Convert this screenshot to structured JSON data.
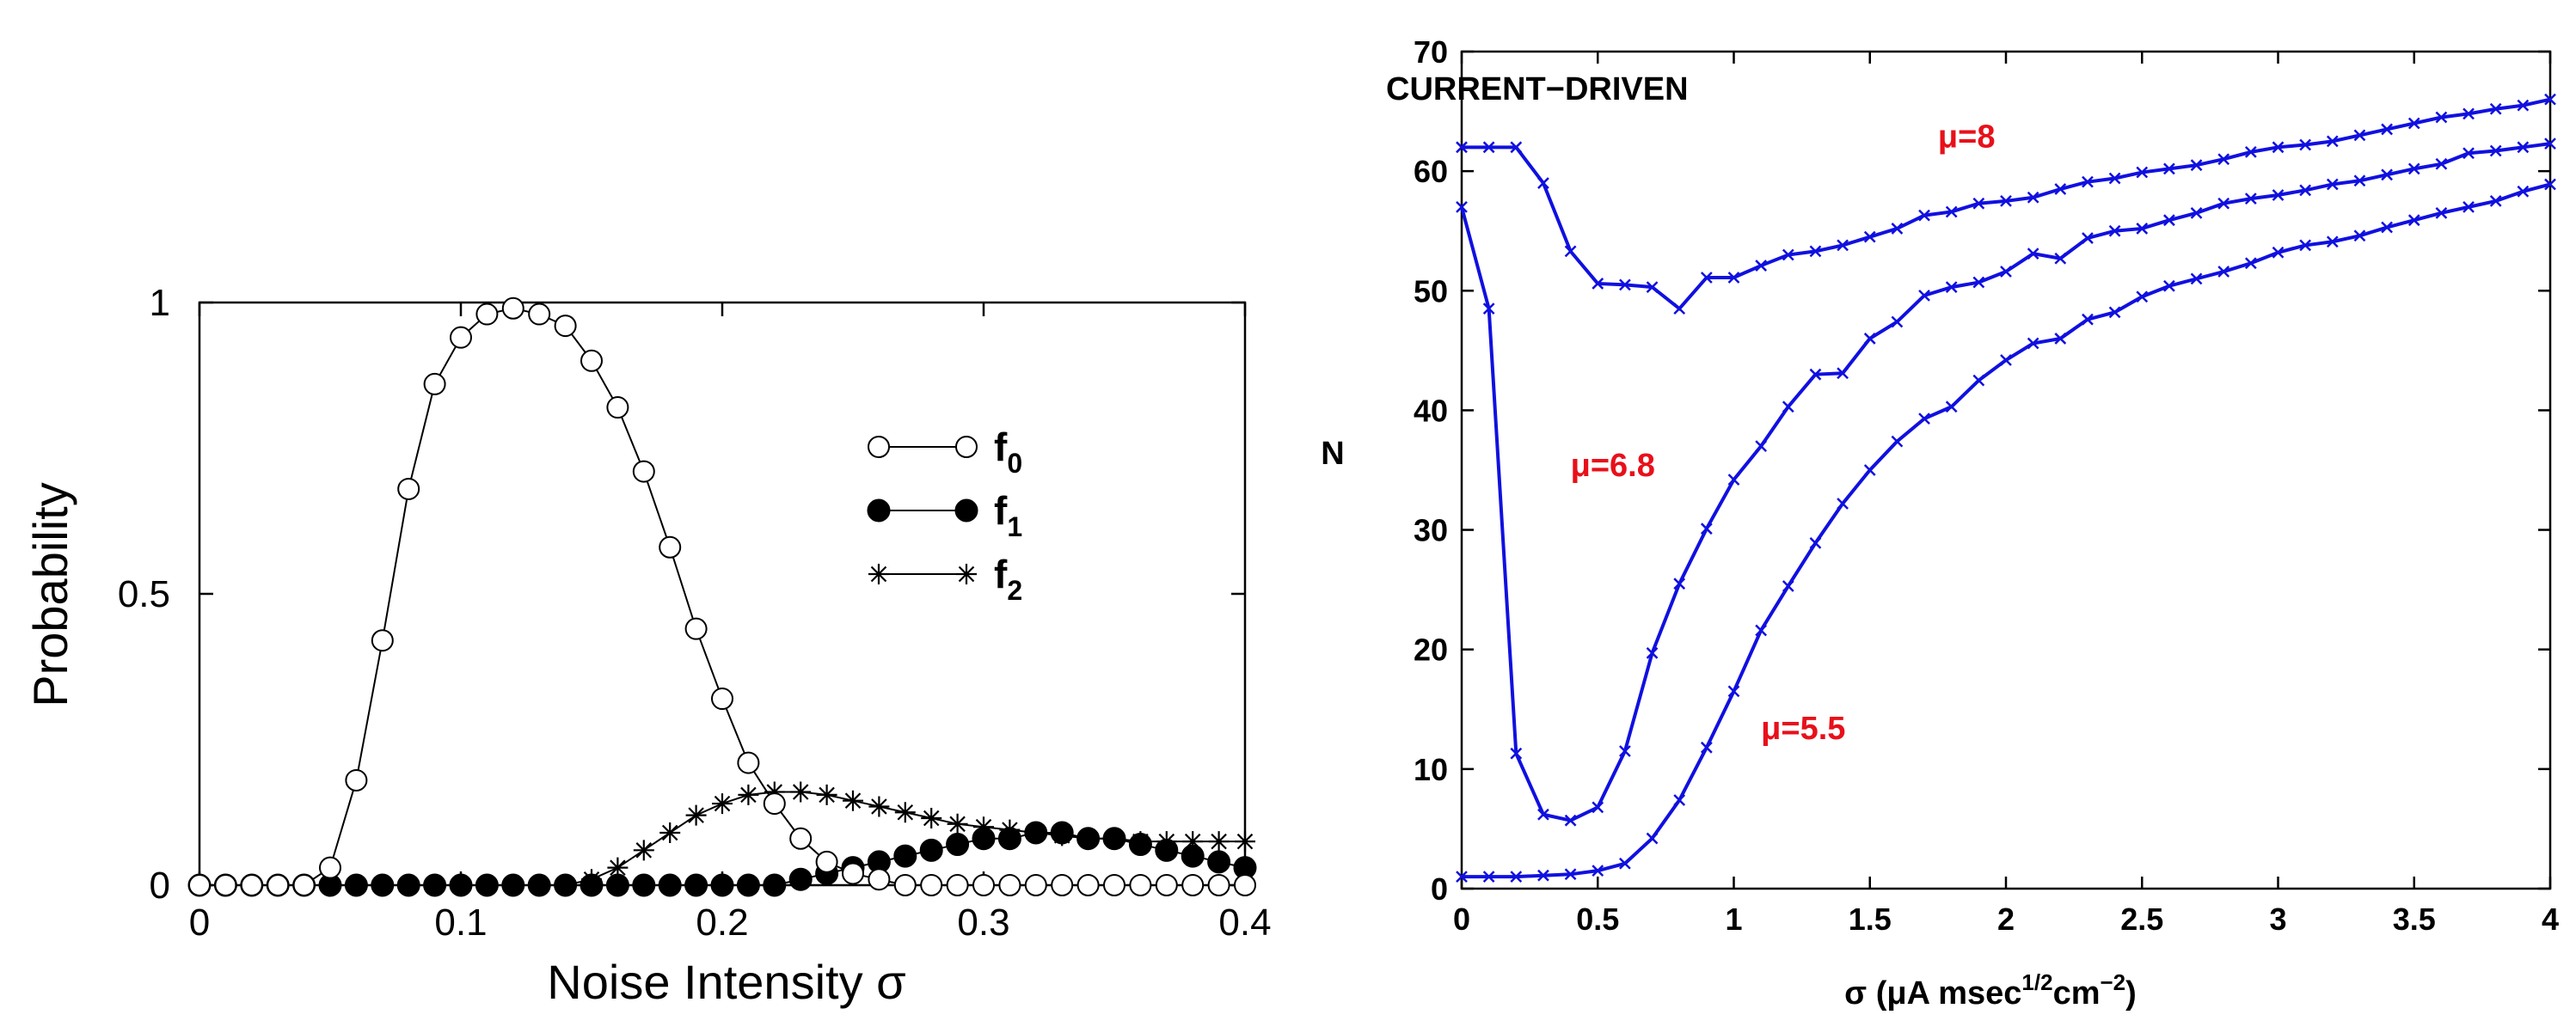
{
  "chart_data": [
    {
      "type": "line",
      "xlabel": "Noise  Intensity σ",
      "ylabel": "Probability",
      "xlim": [
        0,
        0.4
      ],
      "ylim": [
        0,
        1
      ],
      "x_ticks": [
        "0",
        "0.1",
        "0.2",
        "0.3",
        "0.4"
      ],
      "y_ticks": [
        "0",
        "0.5",
        "1"
      ],
      "x": [
        0.0,
        0.01,
        0.02,
        0.03,
        0.04,
        0.05,
        0.06,
        0.07,
        0.08,
        0.09,
        0.1,
        0.11,
        0.12,
        0.13,
        0.14,
        0.15,
        0.16,
        0.17,
        0.18,
        0.19,
        0.2,
        0.21,
        0.22,
        0.23,
        0.24,
        0.25,
        0.26,
        0.27,
        0.28,
        0.29,
        0.3,
        0.31,
        0.32,
        0.33,
        0.34,
        0.35,
        0.36,
        0.37,
        0.38,
        0.39,
        0.4
      ],
      "series": [
        {
          "name": "f",
          "subscript": "0",
          "marker": "open-circle",
          "values": [
            0,
            0,
            0,
            0,
            0,
            0.03,
            0.18,
            0.42,
            0.68,
            0.86,
            0.94,
            0.98,
            0.99,
            0.98,
            0.96,
            0.9,
            0.82,
            0.71,
            0.58,
            0.44,
            0.32,
            0.21,
            0.14,
            0.08,
            0.04,
            0.02,
            0.01,
            0,
            0,
            0,
            0,
            0,
            0,
            0,
            0,
            0,
            0,
            0,
            0,
            0,
            0
          ]
        },
        {
          "name": "f",
          "subscript": "1",
          "marker": "filled-circle",
          "values": [
            0,
            0,
            0,
            0,
            0,
            0,
            0,
            0,
            0,
            0,
            0,
            0,
            0,
            0,
            0,
            0,
            0,
            0,
            0,
            0,
            0,
            0,
            0,
            0.01,
            0.02,
            0.03,
            0.04,
            0.05,
            0.06,
            0.07,
            0.08,
            0.08,
            0.09,
            0.09,
            0.08,
            0.08,
            0.07,
            0.06,
            0.05,
            0.04,
            0.03
          ]
        },
        {
          "name": "f",
          "subscript": "2",
          "marker": "star",
          "values": [
            0,
            0,
            0,
            0,
            0,
            0,
            0,
            0,
            0,
            0,
            0,
            0,
            0,
            0,
            0,
            0.01,
            0.03,
            0.06,
            0.09,
            0.12,
            0.14,
            0.155,
            0.16,
            0.16,
            0.155,
            0.145,
            0.135,
            0.125,
            0.115,
            0.105,
            0.1,
            0.095,
            0.09,
            0.085,
            0.08,
            0.08,
            0.075,
            0.075,
            0.075,
            0.075,
            0.075
          ]
        }
      ],
      "legend": "center-right"
    },
    {
      "type": "line",
      "title": "CURRENT−DRIVEN",
      "xlabel_prefix": "σ  (μA msec",
      "xlabel_sup1": "1/2",
      "xlabel_mid": "cm",
      "xlabel_sup2": "−2",
      "xlabel_suffix": ")",
      "ylabel": "N",
      "xlim": [
        0,
        4
      ],
      "ylim": [
        0,
        70
      ],
      "x_ticks": [
        "0",
        "0.5",
        "1",
        "1.5",
        "2",
        "2.5",
        "3",
        "3.5",
        "4"
      ],
      "y_ticks": [
        "0",
        "10",
        "20",
        "30",
        "40",
        "50",
        "60",
        "70"
      ],
      "x": [
        0.0,
        0.1,
        0.2,
        0.3,
        0.4,
        0.5,
        0.6,
        0.7,
        0.8,
        0.9,
        1.0,
        1.1,
        1.2,
        1.3,
        1.4,
        1.5,
        1.6,
        1.7,
        1.8,
        1.9,
        2.0,
        2.1,
        2.2,
        2.3,
        2.4,
        2.5,
        2.6,
        2.7,
        2.8,
        2.9,
        3.0,
        3.1,
        3.2,
        3.3,
        3.4,
        3.5,
        3.6,
        3.7,
        3.8,
        3.9,
        4.0
      ],
      "series": [
        {
          "name": "μ=8",
          "values": [
            62,
            62,
            62,
            59,
            53.3,
            50.6,
            50.5,
            50.3,
            48.5,
            51.1,
            51.1,
            52.1,
            53,
            53.3,
            53.8,
            54.5,
            55.2,
            56.3,
            56.6,
            57.3,
            57.5,
            57.8,
            58.5,
            59.1,
            59.4,
            59.9,
            60.2,
            60.5,
            61,
            61.6,
            62,
            62.2,
            62.5,
            63,
            63.5,
            64,
            64.5,
            64.8,
            65.2,
            65.5,
            66
          ]
        },
        {
          "name": "μ=6.8",
          "values": [
            57,
            48.5,
            11.3,
            6.2,
            5.7,
            6.8,
            11.5,
            19.7,
            25.5,
            30.1,
            34.2,
            37,
            40.3,
            43,
            43.1,
            46,
            47.4,
            49.6,
            50.3,
            50.7,
            51.6,
            53.1,
            52.7,
            54.4,
            55,
            55.2,
            55.9,
            56.5,
            57.3,
            57.7,
            58,
            58.4,
            58.9,
            59.2,
            59.7,
            60.2,
            60.6,
            61.5,
            61.7,
            62,
            62.3
          ]
        },
        {
          "name": "μ=5.5",
          "values": [
            1,
            1,
            1,
            1.1,
            1.2,
            1.5,
            2.1,
            4.2,
            7.4,
            11.8,
            16.5,
            21.6,
            25.3,
            28.9,
            32.2,
            35,
            37.4,
            39.3,
            40.3,
            42.5,
            44.2,
            45.6,
            46,
            47.6,
            48.2,
            49.5,
            50.4,
            51,
            51.6,
            52.3,
            53.2,
            53.8,
            54.1,
            54.6,
            55.3,
            55.9,
            56.5,
            57,
            57.5,
            58.3,
            58.9
          ]
        }
      ],
      "annotations": [
        {
          "text": "μ=8",
          "x": 1.75,
          "y": 62
        },
        {
          "text": "μ=6.8",
          "x": 0.4,
          "y": 34.5
        },
        {
          "text": "μ=5.5",
          "x": 1.1,
          "y": 12.5
        }
      ]
    }
  ]
}
